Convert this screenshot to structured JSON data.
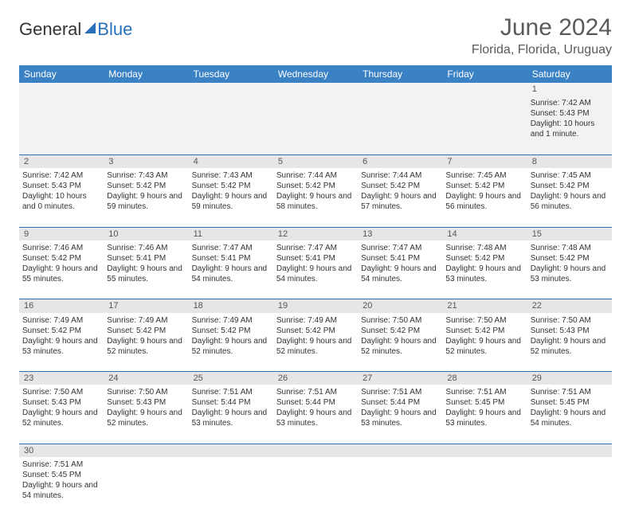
{
  "logo": {
    "part1": "General",
    "part2": "Blue"
  },
  "title": "June 2024",
  "location": "Florida, Florida, Uruguay",
  "colors": {
    "header_bg": "#3b82c4",
    "header_text": "#ffffff",
    "brand_blue": "#2a70b8",
    "daynum_bg": "#e6e6e6",
    "text": "#333333"
  },
  "weekdays": [
    "Sunday",
    "Monday",
    "Tuesday",
    "Wednesday",
    "Thursday",
    "Friday",
    "Saturday"
  ],
  "weeks": [
    [
      null,
      null,
      null,
      null,
      null,
      null,
      {
        "n": "1",
        "sr": "Sunrise: 7:42 AM",
        "ss": "Sunset: 5:43 PM",
        "dl": "Daylight: 10 hours and 1 minute."
      }
    ],
    [
      {
        "n": "2",
        "sr": "Sunrise: 7:42 AM",
        "ss": "Sunset: 5:43 PM",
        "dl": "Daylight: 10 hours and 0 minutes."
      },
      {
        "n": "3",
        "sr": "Sunrise: 7:43 AM",
        "ss": "Sunset: 5:42 PM",
        "dl": "Daylight: 9 hours and 59 minutes."
      },
      {
        "n": "4",
        "sr": "Sunrise: 7:43 AM",
        "ss": "Sunset: 5:42 PM",
        "dl": "Daylight: 9 hours and 59 minutes."
      },
      {
        "n": "5",
        "sr": "Sunrise: 7:44 AM",
        "ss": "Sunset: 5:42 PM",
        "dl": "Daylight: 9 hours and 58 minutes."
      },
      {
        "n": "6",
        "sr": "Sunrise: 7:44 AM",
        "ss": "Sunset: 5:42 PM",
        "dl": "Daylight: 9 hours and 57 minutes."
      },
      {
        "n": "7",
        "sr": "Sunrise: 7:45 AM",
        "ss": "Sunset: 5:42 PM",
        "dl": "Daylight: 9 hours and 56 minutes."
      },
      {
        "n": "8",
        "sr": "Sunrise: 7:45 AM",
        "ss": "Sunset: 5:42 PM",
        "dl": "Daylight: 9 hours and 56 minutes."
      }
    ],
    [
      {
        "n": "9",
        "sr": "Sunrise: 7:46 AM",
        "ss": "Sunset: 5:42 PM",
        "dl": "Daylight: 9 hours and 55 minutes."
      },
      {
        "n": "10",
        "sr": "Sunrise: 7:46 AM",
        "ss": "Sunset: 5:41 PM",
        "dl": "Daylight: 9 hours and 55 minutes."
      },
      {
        "n": "11",
        "sr": "Sunrise: 7:47 AM",
        "ss": "Sunset: 5:41 PM",
        "dl": "Daylight: 9 hours and 54 minutes."
      },
      {
        "n": "12",
        "sr": "Sunrise: 7:47 AM",
        "ss": "Sunset: 5:41 PM",
        "dl": "Daylight: 9 hours and 54 minutes."
      },
      {
        "n": "13",
        "sr": "Sunrise: 7:47 AM",
        "ss": "Sunset: 5:41 PM",
        "dl": "Daylight: 9 hours and 54 minutes."
      },
      {
        "n": "14",
        "sr": "Sunrise: 7:48 AM",
        "ss": "Sunset: 5:42 PM",
        "dl": "Daylight: 9 hours and 53 minutes."
      },
      {
        "n": "15",
        "sr": "Sunrise: 7:48 AM",
        "ss": "Sunset: 5:42 PM",
        "dl": "Daylight: 9 hours and 53 minutes."
      }
    ],
    [
      {
        "n": "16",
        "sr": "Sunrise: 7:49 AM",
        "ss": "Sunset: 5:42 PM",
        "dl": "Daylight: 9 hours and 53 minutes."
      },
      {
        "n": "17",
        "sr": "Sunrise: 7:49 AM",
        "ss": "Sunset: 5:42 PM",
        "dl": "Daylight: 9 hours and 52 minutes."
      },
      {
        "n": "18",
        "sr": "Sunrise: 7:49 AM",
        "ss": "Sunset: 5:42 PM",
        "dl": "Daylight: 9 hours and 52 minutes."
      },
      {
        "n": "19",
        "sr": "Sunrise: 7:49 AM",
        "ss": "Sunset: 5:42 PM",
        "dl": "Daylight: 9 hours and 52 minutes."
      },
      {
        "n": "20",
        "sr": "Sunrise: 7:50 AM",
        "ss": "Sunset: 5:42 PM",
        "dl": "Daylight: 9 hours and 52 minutes."
      },
      {
        "n": "21",
        "sr": "Sunrise: 7:50 AM",
        "ss": "Sunset: 5:42 PM",
        "dl": "Daylight: 9 hours and 52 minutes."
      },
      {
        "n": "22",
        "sr": "Sunrise: 7:50 AM",
        "ss": "Sunset: 5:43 PM",
        "dl": "Daylight: 9 hours and 52 minutes."
      }
    ],
    [
      {
        "n": "23",
        "sr": "Sunrise: 7:50 AM",
        "ss": "Sunset: 5:43 PM",
        "dl": "Daylight: 9 hours and 52 minutes."
      },
      {
        "n": "24",
        "sr": "Sunrise: 7:50 AM",
        "ss": "Sunset: 5:43 PM",
        "dl": "Daylight: 9 hours and 52 minutes."
      },
      {
        "n": "25",
        "sr": "Sunrise: 7:51 AM",
        "ss": "Sunset: 5:44 PM",
        "dl": "Daylight: 9 hours and 53 minutes."
      },
      {
        "n": "26",
        "sr": "Sunrise: 7:51 AM",
        "ss": "Sunset: 5:44 PM",
        "dl": "Daylight: 9 hours and 53 minutes."
      },
      {
        "n": "27",
        "sr": "Sunrise: 7:51 AM",
        "ss": "Sunset: 5:44 PM",
        "dl": "Daylight: 9 hours and 53 minutes."
      },
      {
        "n": "28",
        "sr": "Sunrise: 7:51 AM",
        "ss": "Sunset: 5:45 PM",
        "dl": "Daylight: 9 hours and 53 minutes."
      },
      {
        "n": "29",
        "sr": "Sunrise: 7:51 AM",
        "ss": "Sunset: 5:45 PM",
        "dl": "Daylight: 9 hours and 54 minutes."
      }
    ],
    [
      {
        "n": "30",
        "sr": "Sunrise: 7:51 AM",
        "ss": "Sunset: 5:45 PM",
        "dl": "Daylight: 9 hours and 54 minutes."
      },
      null,
      null,
      null,
      null,
      null,
      null
    ]
  ]
}
